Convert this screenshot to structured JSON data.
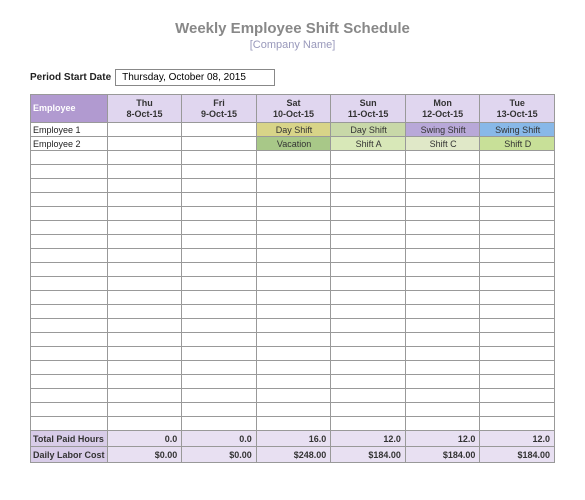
{
  "title": "Weekly Employee Shift Schedule",
  "subtitle": "[Company Name]",
  "period_label": "Period Start Date",
  "period_value": "Thursday, October 08, 2015",
  "header_employee": "Employee",
  "days": [
    {
      "dow": "Thu",
      "date": "8-Oct-15"
    },
    {
      "dow": "Fri",
      "date": "9-Oct-15"
    },
    {
      "dow": "Sat",
      "date": "10-Oct-15"
    },
    {
      "dow": "Sun",
      "date": "11-Oct-15"
    },
    {
      "dow": "Mon",
      "date": "12-Oct-15"
    },
    {
      "dow": "Tue",
      "date": "13-Oct-15"
    }
  ],
  "employees": [
    {
      "name": "Employee 1",
      "shifts": [
        {
          "label": "",
          "bg": "#ffffff"
        },
        {
          "label": "",
          "bg": "#ffffff"
        },
        {
          "label": "Day Shift",
          "bg": "#d8d488"
        },
        {
          "label": "Day Shift",
          "bg": "#c8d8a8"
        },
        {
          "label": "Swing Shift",
          "bg": "#b8a8d8"
        },
        {
          "label": "Swing Shift",
          "bg": "#88b8e8"
        }
      ]
    },
    {
      "name": "Employee 2",
      "shifts": [
        {
          "label": "",
          "bg": "#ffffff"
        },
        {
          "label": "",
          "bg": "#ffffff"
        },
        {
          "label": "Vacation",
          "bg": "#a8c888"
        },
        {
          "label": "Shift A",
          "bg": "#d8e8b8"
        },
        {
          "label": "Shift C",
          "bg": "#e0e8c8"
        },
        {
          "label": "Shift D",
          "bg": "#c8e098"
        }
      ]
    }
  ],
  "empty_rows": 20,
  "footer": {
    "paid_hours_label": "Total Paid Hours",
    "paid_hours": [
      "0.0",
      "0.0",
      "16.0",
      "12.0",
      "12.0",
      "12.0"
    ],
    "labor_cost_label": "Daily Labor Cost",
    "labor_cost": [
      "$0.00",
      "$0.00",
      "$248.00",
      "$184.00",
      "$184.00",
      "$184.00"
    ]
  },
  "colors": {
    "header_emp_bg": "#b19ad0",
    "header_day_bg": "#e0d6ef",
    "footer_label_bg": "#d8cce8",
    "footer_val_bg": "#e8e0f2"
  }
}
